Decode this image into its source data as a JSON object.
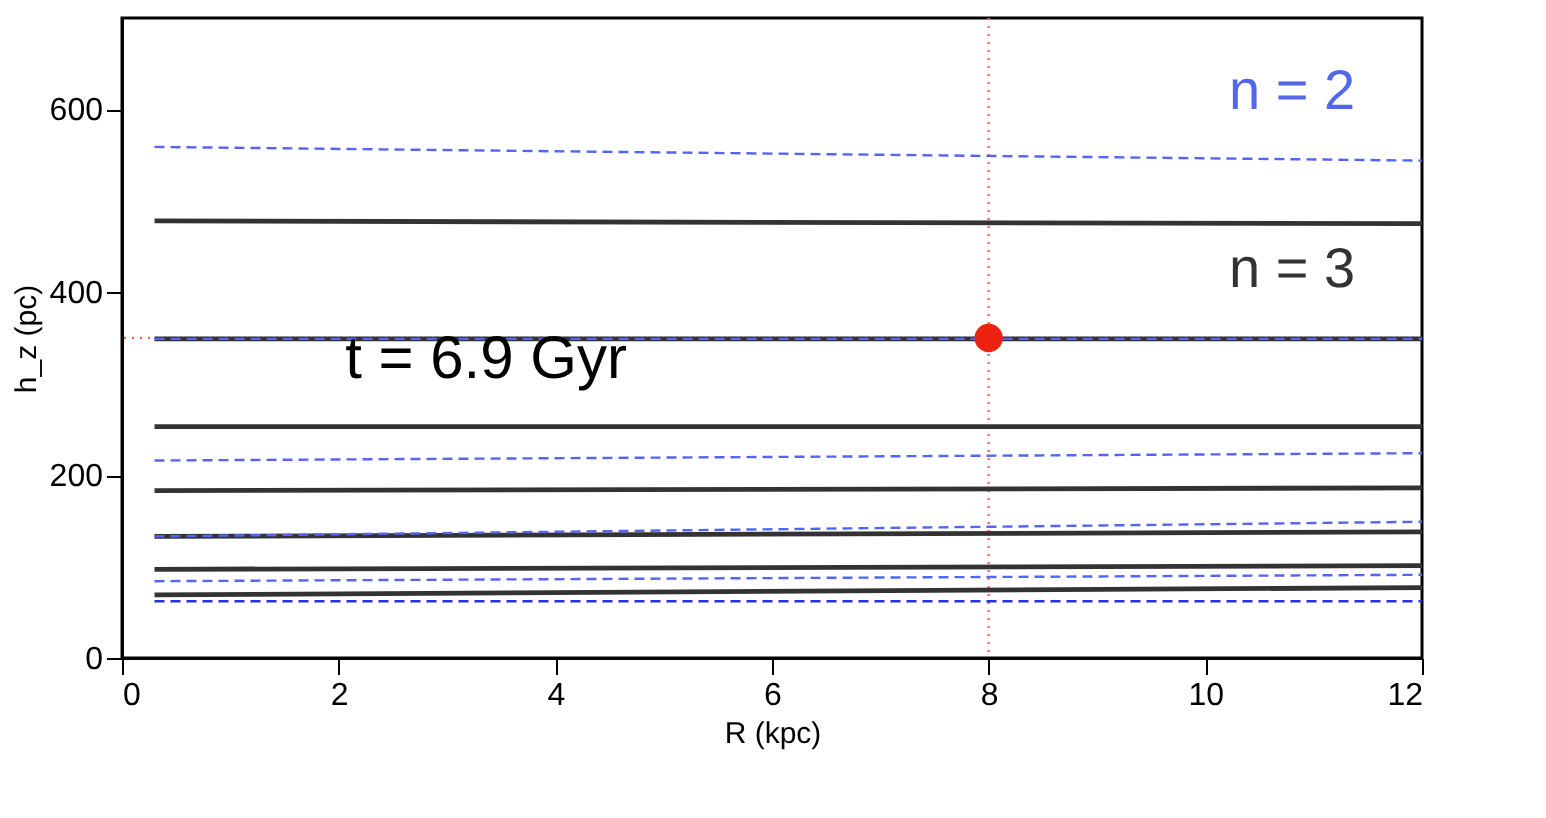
{
  "chart_data": {
    "type": "line",
    "xlabel": "R (kpc)",
    "ylabel": "h_z (pc)",
    "xlim": [
      0,
      12
    ],
    "ylim": [
      0,
      700
    ],
    "xticks": [
      0,
      2,
      4,
      6,
      8,
      10,
      12
    ],
    "yticks": [
      0,
      200,
      400,
      600
    ],
    "grid": false,
    "series": [
      {
        "name": "n = 2",
        "color": "#5566ee",
        "line_style": "dashed",
        "x": [
          0.3,
          12
        ],
        "values": [
          559,
          544
        ]
      },
      {
        "color": "#5566ee",
        "line_style": "dashed",
        "x": [
          0.3,
          12
        ],
        "values": [
          349,
          349
        ]
      },
      {
        "color": "#5566ee",
        "line_style": "dashed",
        "x": [
          0.3,
          12
        ],
        "values": [
          216,
          224
        ]
      },
      {
        "color": "#5566ee",
        "line_style": "dashed",
        "x": [
          0.3,
          12
        ],
        "values": [
          133,
          149
        ]
      },
      {
        "color": "#5566ee",
        "line_style": "dashed",
        "x": [
          0.3,
          12
        ],
        "values": [
          84,
          91
        ]
      },
      {
        "color": "#2233dd",
        "line_style": "dashed",
        "x": [
          0.3,
          12
        ],
        "values": [
          62,
          62
        ]
      },
      {
        "color": "#333333",
        "line_style": "solid",
        "x": [
          0.3,
          12
        ],
        "values": [
          478,
          475
        ]
      },
      {
        "name": "n = 3",
        "color": "#333333",
        "line_style": "solid",
        "x": [
          0.3,
          12
        ],
        "values": [
          349,
          349
        ]
      },
      {
        "color": "#333333",
        "line_style": "solid",
        "x": [
          0.3,
          12
        ],
        "values": [
          253,
          253
        ]
      },
      {
        "color": "#333333",
        "line_style": "solid",
        "x": [
          0.3,
          12
        ],
        "values": [
          183,
          186
        ]
      },
      {
        "color": "#333333",
        "line_style": "solid",
        "x": [
          0.3,
          12
        ],
        "values": [
          133,
          138
        ]
      },
      {
        "color": "#333333",
        "line_style": "solid",
        "x": [
          0.3,
          12
        ],
        "values": [
          97,
          101
        ]
      },
      {
        "color": "#333333",
        "line_style": "solid",
        "x": [
          0.3,
          12
        ],
        "values": [
          69,
          77
        ]
      },
      {
        "type": "scatter",
        "marker": "circle",
        "color": "#ee2211",
        "x": [
          8
        ],
        "values": [
          350
        ]
      }
    ],
    "ref_lines": [
      {
        "axis": "x",
        "value": 8,
        "color": "#ee6666",
        "line_style": "dotted"
      },
      {
        "axis": "y",
        "value": 350,
        "color": "#ee6666",
        "line_style": "dotted"
      }
    ],
    "annotations": [
      "t = 6.9 Gyr"
    ]
  }
}
